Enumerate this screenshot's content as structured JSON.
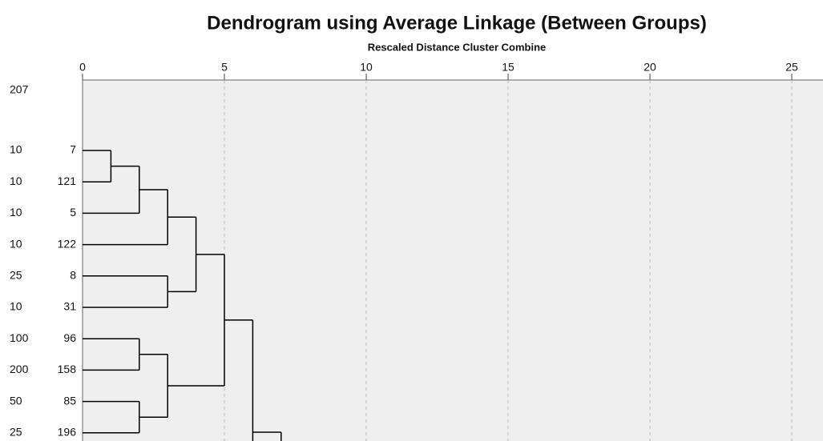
{
  "chart_data": {
    "type": "dendrogram",
    "title": "Dendrogram using Average Linkage (Between Groups)",
    "x_label": "Rescaled Distance Cluster Combine",
    "xlim": [
      0,
      26.1
    ],
    "xticks": [
      0,
      5,
      10,
      15,
      20,
      25
    ],
    "grid": true,
    "top_label": 207,
    "leaves": [
      {
        "count": 10,
        "id": 7
      },
      {
        "count": 10,
        "id": 121
      },
      {
        "count": 10,
        "id": 5
      },
      {
        "count": 10,
        "id": 122
      },
      {
        "count": 25,
        "id": 8
      },
      {
        "count": 10,
        "id": 31
      },
      {
        "count": 100,
        "id": 96
      },
      {
        "count": 200,
        "id": 158
      },
      {
        "count": 50,
        "id": 85
      },
      {
        "count": 25,
        "id": 196
      }
    ],
    "merges": [
      {
        "height": 1,
        "members": [
          7,
          121
        ]
      },
      {
        "height": 2,
        "members": [
          7,
          121,
          5
        ]
      },
      {
        "height": 2,
        "members": [
          96,
          158
        ]
      },
      {
        "height": 2,
        "members": [
          85,
          196
        ]
      },
      {
        "height": 3,
        "members": [
          7,
          121,
          5,
          122
        ]
      },
      {
        "height": 3,
        "members": [
          8,
          31
        ]
      },
      {
        "height": 3,
        "members": [
          96,
          158,
          85,
          196
        ]
      },
      {
        "height": 4,
        "members": [
          7,
          121,
          5,
          122,
          8,
          31
        ]
      },
      {
        "height": 5,
        "members": [
          7,
          121,
          5,
          122,
          8,
          31,
          96,
          158,
          85,
          196
        ]
      },
      {
        "height": 6,
        "members": [
          7,
          121,
          5,
          122,
          8,
          31,
          96,
          158,
          85,
          196
        ]
      },
      {
        "height": 7,
        "members": [
          7,
          121,
          5,
          122,
          8,
          31,
          96,
          158,
          85,
          196
        ]
      }
    ]
  }
}
